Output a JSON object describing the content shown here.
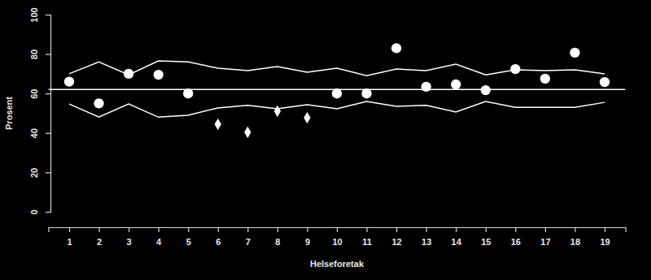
{
  "chart_data": {
    "type": "line",
    "xlabel": "Helseforetak",
    "ylabel": "Prosent",
    "x": [
      1,
      2,
      3,
      4,
      5,
      6,
      7,
      8,
      9,
      10,
      11,
      12,
      13,
      14,
      15,
      16,
      17,
      18,
      19
    ],
    "xlim": [
      0.3,
      19.7
    ],
    "xticks": [
      1,
      2,
      3,
      4,
      5,
      6,
      7,
      8,
      9,
      10,
      11,
      12,
      13,
      14,
      15,
      16,
      17,
      18,
      19
    ],
    "ylim": [
      0,
      100
    ],
    "yticks": [
      0,
      20,
      40,
      60,
      80,
      100
    ],
    "hline": 62,
    "color": "#ffffff",
    "series": [
      {
        "type": "scatter",
        "marker": "circle",
        "color": "#ffffff",
        "values": [
          66,
          55,
          70,
          69.5,
          60,
          null,
          null,
          null,
          null,
          60,
          60,
          83,
          63.4,
          64.6,
          61.7,
          72.4,
          67.5,
          80.7,
          65.8
        ]
      },
      {
        "type": "scatter",
        "marker": "diamond",
        "color": "#ffffff",
        "values": [
          null,
          null,
          null,
          null,
          null,
          44.4,
          40.3,
          51,
          47.7,
          null,
          null,
          null,
          null,
          null,
          null,
          null,
          null,
          null,
          null
        ]
      },
      {
        "type": "line",
        "line_style": "solid",
        "color": "#ffffff",
        "values": [
          70,
          76,
          69.5,
          76.5,
          76,
          72.8,
          71.6,
          73.7,
          70.8,
          72.8,
          69,
          72.4,
          71.6,
          74.9,
          69.5,
          72,
          71.6,
          72,
          70
        ]
      },
      {
        "type": "line",
        "line_style": "solid",
        "color": "#ffffff",
        "values": [
          54.7,
          48.1,
          54.7,
          48,
          49,
          52.7,
          54,
          52.3,
          54.3,
          52.3,
          56,
          53.5,
          54,
          50.6,
          56,
          53,
          53,
          53,
          55.5
        ]
      }
    ]
  }
}
